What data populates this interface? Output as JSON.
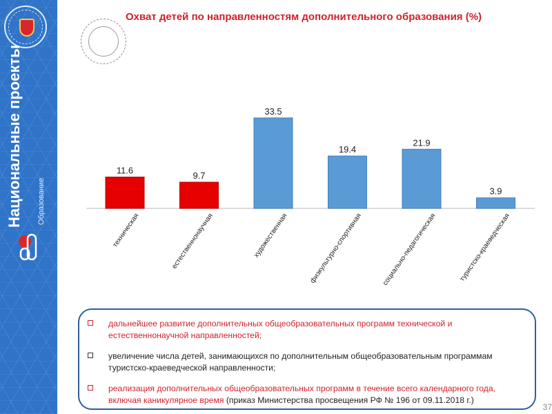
{
  "sidebar": {
    "project_title": "Национальные проекты",
    "project_subtitle": "Образование"
  },
  "header": {
    "title": "Охват детей по направленностям дополнительного образования (%)"
  },
  "chart_data": {
    "type": "bar",
    "title": "Охват детей по направленностям дополнительного образования (%)",
    "categories": [
      "техническая",
      "естественнонаучная",
      "художественная",
      "физкультурно-спортивная",
      "социально-педагогическая",
      "туристско-краеведческая"
    ],
    "values": [
      11.6,
      9.7,
      33.5,
      19.4,
      21.9,
      3.9
    ],
    "value_labels": [
      "11.6",
      "9.7",
      "33.5",
      "19.4",
      "21.9",
      "3.9"
    ],
    "bar_colors": [
      "#e60000",
      "#e60000",
      "#5b9bd5",
      "#5b9bd5",
      "#5b9bd5",
      "#5b9bd5"
    ],
    "ylim": [
      0,
      35
    ],
    "grid": false,
    "legend": "none"
  },
  "info": {
    "items": [
      {
        "text": "дальнейшее развитие дополнительных общеобразовательных программ технической и естественнонаучной направленностей;"
      },
      {
        "text": "увеличение числа детей, занимающихся по дополнительным общеобразовательным программам туристско-краеведческой направленности;"
      },
      {
        "text_red": "реализация дополнительных общеобразовательных программ в течение всего календарного года, включая каникулярное время",
        "text_dark": " (приказ Министерства просвещения РФ № 196 от 09.11.2018 г.)"
      }
    ]
  },
  "page_number": "37"
}
